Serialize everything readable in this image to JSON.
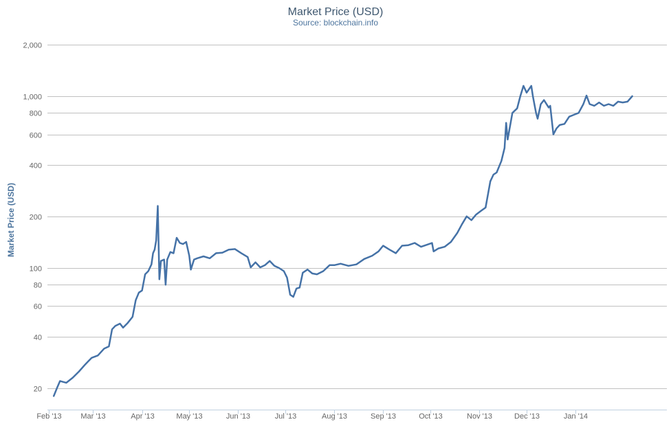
{
  "chart_data": {
    "type": "line",
    "title": "Market Price (USD)",
    "subtitle": "Source: blockchain.info",
    "ylabel": "Market Price (USD)",
    "xlabel": "",
    "yscale": "log",
    "ylim": [
      15,
      2400
    ],
    "xlim": [
      "2013-01-31",
      "2014-02-28"
    ],
    "grid": true,
    "legend": "none",
    "line_color": "#4572a7",
    "y_ticks": [
      {
        "value": 20,
        "label": "20"
      },
      {
        "value": 40,
        "label": "40"
      },
      {
        "value": 60,
        "label": "60"
      },
      {
        "value": 80,
        "label": "80"
      },
      {
        "value": 100,
        "label": "100"
      },
      {
        "value": 200,
        "label": "200"
      },
      {
        "value": 400,
        "label": "400"
      },
      {
        "value": 600,
        "label": "600"
      },
      {
        "value": 800,
        "label": "800"
      },
      {
        "value": 1000,
        "label": "1,000"
      },
      {
        "value": 2000,
        "label": "2,000"
      }
    ],
    "x_ticks": [
      {
        "date": "2013-02-01",
        "label": "Feb '13"
      },
      {
        "date": "2013-03-01",
        "label": "Mar '13"
      },
      {
        "date": "2013-04-01",
        "label": "Apr '13"
      },
      {
        "date": "2013-05-01",
        "label": "May '13"
      },
      {
        "date": "2013-06-01",
        "label": "Jun '13"
      },
      {
        "date": "2013-07-01",
        "label": "Jul '13"
      },
      {
        "date": "2013-08-01",
        "label": "Aug '13"
      },
      {
        "date": "2013-09-01",
        "label": "Sep '13"
      },
      {
        "date": "2013-10-01",
        "label": "Oct '13"
      },
      {
        "date": "2013-11-01",
        "label": "Nov '13"
      },
      {
        "date": "2013-12-01",
        "label": "Dec '13"
      },
      {
        "date": "2014-01-01",
        "label": "Jan '14"
      }
    ],
    "series": [
      {
        "points": [
          [
            "2013-02-04",
            18
          ],
          [
            "2013-02-06",
            20
          ],
          [
            "2013-02-08",
            22
          ],
          [
            "2013-02-12",
            21.5
          ],
          [
            "2013-02-16",
            23
          ],
          [
            "2013-02-20",
            25
          ],
          [
            "2013-02-24",
            27.5
          ],
          [
            "2013-02-28",
            30
          ],
          [
            "2013-03-04",
            31
          ],
          [
            "2013-03-08",
            34
          ],
          [
            "2013-03-11",
            35
          ],
          [
            "2013-03-13",
            44
          ],
          [
            "2013-03-15",
            46
          ],
          [
            "2013-03-18",
            47.5
          ],
          [
            "2013-03-20",
            45
          ],
          [
            "2013-03-23",
            48
          ],
          [
            "2013-03-26",
            52
          ],
          [
            "2013-03-28",
            65
          ],
          [
            "2013-03-30",
            72
          ],
          [
            "2013-04-01",
            74
          ],
          [
            "2013-04-03",
            92
          ],
          [
            "2013-04-05",
            96
          ],
          [
            "2013-04-07",
            105
          ],
          [
            "2013-04-08",
            122
          ],
          [
            "2013-04-09",
            128
          ],
          [
            "2013-04-10",
            145
          ],
          [
            "2013-04-11",
            230
          ],
          [
            "2013-04-12",
            86
          ],
          [
            "2013-04-13",
            110
          ],
          [
            "2013-04-15",
            112
          ],
          [
            "2013-04-16",
            80
          ],
          [
            "2013-04-17",
            112
          ],
          [
            "2013-04-19",
            124
          ],
          [
            "2013-04-21",
            122
          ],
          [
            "2013-04-23",
            150
          ],
          [
            "2013-04-25",
            140
          ],
          [
            "2013-04-27",
            138
          ],
          [
            "2013-04-29",
            142
          ],
          [
            "2013-05-01",
            118
          ],
          [
            "2013-05-02",
            98
          ],
          [
            "2013-05-04",
            112
          ],
          [
            "2013-05-06",
            114
          ],
          [
            "2013-05-10",
            117
          ],
          [
            "2013-05-14",
            114
          ],
          [
            "2013-05-18",
            122
          ],
          [
            "2013-05-22",
            123
          ],
          [
            "2013-05-26",
            128
          ],
          [
            "2013-05-30",
            129
          ],
          [
            "2013-06-03",
            122
          ],
          [
            "2013-06-07",
            116
          ],
          [
            "2013-06-09",
            101
          ],
          [
            "2013-06-12",
            108
          ],
          [
            "2013-06-15",
            101
          ],
          [
            "2013-06-18",
            104
          ],
          [
            "2013-06-21",
            110
          ],
          [
            "2013-06-24",
            103
          ],
          [
            "2013-06-27",
            100
          ],
          [
            "2013-06-30",
            96
          ],
          [
            "2013-07-02",
            88
          ],
          [
            "2013-07-04",
            70
          ],
          [
            "2013-07-06",
            68
          ],
          [
            "2013-07-08",
            76
          ],
          [
            "2013-07-10",
            77
          ],
          [
            "2013-07-12",
            94
          ],
          [
            "2013-07-15",
            98
          ],
          [
            "2013-07-18",
            93
          ],
          [
            "2013-07-21",
            92
          ],
          [
            "2013-07-25",
            96
          ],
          [
            "2013-07-29",
            104
          ],
          [
            "2013-08-01",
            104
          ],
          [
            "2013-08-05",
            106
          ],
          [
            "2013-08-10",
            103
          ],
          [
            "2013-08-15",
            105
          ],
          [
            "2013-08-20",
            113
          ],
          [
            "2013-08-25",
            118
          ],
          [
            "2013-08-29",
            125
          ],
          [
            "2013-09-01",
            135
          ],
          [
            "2013-09-05",
            128
          ],
          [
            "2013-09-09",
            122
          ],
          [
            "2013-09-13",
            135
          ],
          [
            "2013-09-17",
            136
          ],
          [
            "2013-09-21",
            140
          ],
          [
            "2013-09-25",
            133
          ],
          [
            "2013-09-29",
            137
          ],
          [
            "2013-10-02",
            140
          ],
          [
            "2013-10-03",
            125
          ],
          [
            "2013-10-06",
            130
          ],
          [
            "2013-10-10",
            133
          ],
          [
            "2013-10-14",
            142
          ],
          [
            "2013-10-18",
            160
          ],
          [
            "2013-10-21",
            180
          ],
          [
            "2013-10-24",
            200
          ],
          [
            "2013-10-27",
            190
          ],
          [
            "2013-10-30",
            205
          ],
          [
            "2013-11-02",
            215
          ],
          [
            "2013-11-05",
            225
          ],
          [
            "2013-11-08",
            320
          ],
          [
            "2013-11-10",
            350
          ],
          [
            "2013-11-12",
            360
          ],
          [
            "2013-11-15",
            420
          ],
          [
            "2013-11-17",
            500
          ],
          [
            "2013-11-18",
            700
          ],
          [
            "2013-11-19",
            560
          ],
          [
            "2013-11-22",
            800
          ],
          [
            "2013-11-25",
            850
          ],
          [
            "2013-11-27",
            1000
          ],
          [
            "2013-11-29",
            1150
          ],
          [
            "2013-12-01",
            1050
          ],
          [
            "2013-12-04",
            1150
          ],
          [
            "2013-12-05",
            1000
          ],
          [
            "2013-12-07",
            800
          ],
          [
            "2013-12-08",
            740
          ],
          [
            "2013-12-10",
            900
          ],
          [
            "2013-12-12",
            950
          ],
          [
            "2013-12-15",
            860
          ],
          [
            "2013-12-16",
            880
          ],
          [
            "2013-12-18",
            600
          ],
          [
            "2013-12-20",
            650
          ],
          [
            "2013-12-22",
            680
          ],
          [
            "2013-12-25",
            690
          ],
          [
            "2013-12-28",
            760
          ],
          [
            "2013-12-31",
            780
          ],
          [
            "2014-01-03",
            800
          ],
          [
            "2014-01-06",
            900
          ],
          [
            "2014-01-08",
            1010
          ],
          [
            "2014-01-10",
            900
          ],
          [
            "2014-01-13",
            880
          ],
          [
            "2014-01-16",
            920
          ],
          [
            "2014-01-19",
            880
          ],
          [
            "2014-01-22",
            900
          ],
          [
            "2014-01-25",
            880
          ],
          [
            "2014-01-28",
            930
          ],
          [
            "2014-01-31",
            920
          ],
          [
            "2014-02-03",
            930
          ],
          [
            "2014-02-06",
            1000
          ]
        ]
      }
    ]
  }
}
